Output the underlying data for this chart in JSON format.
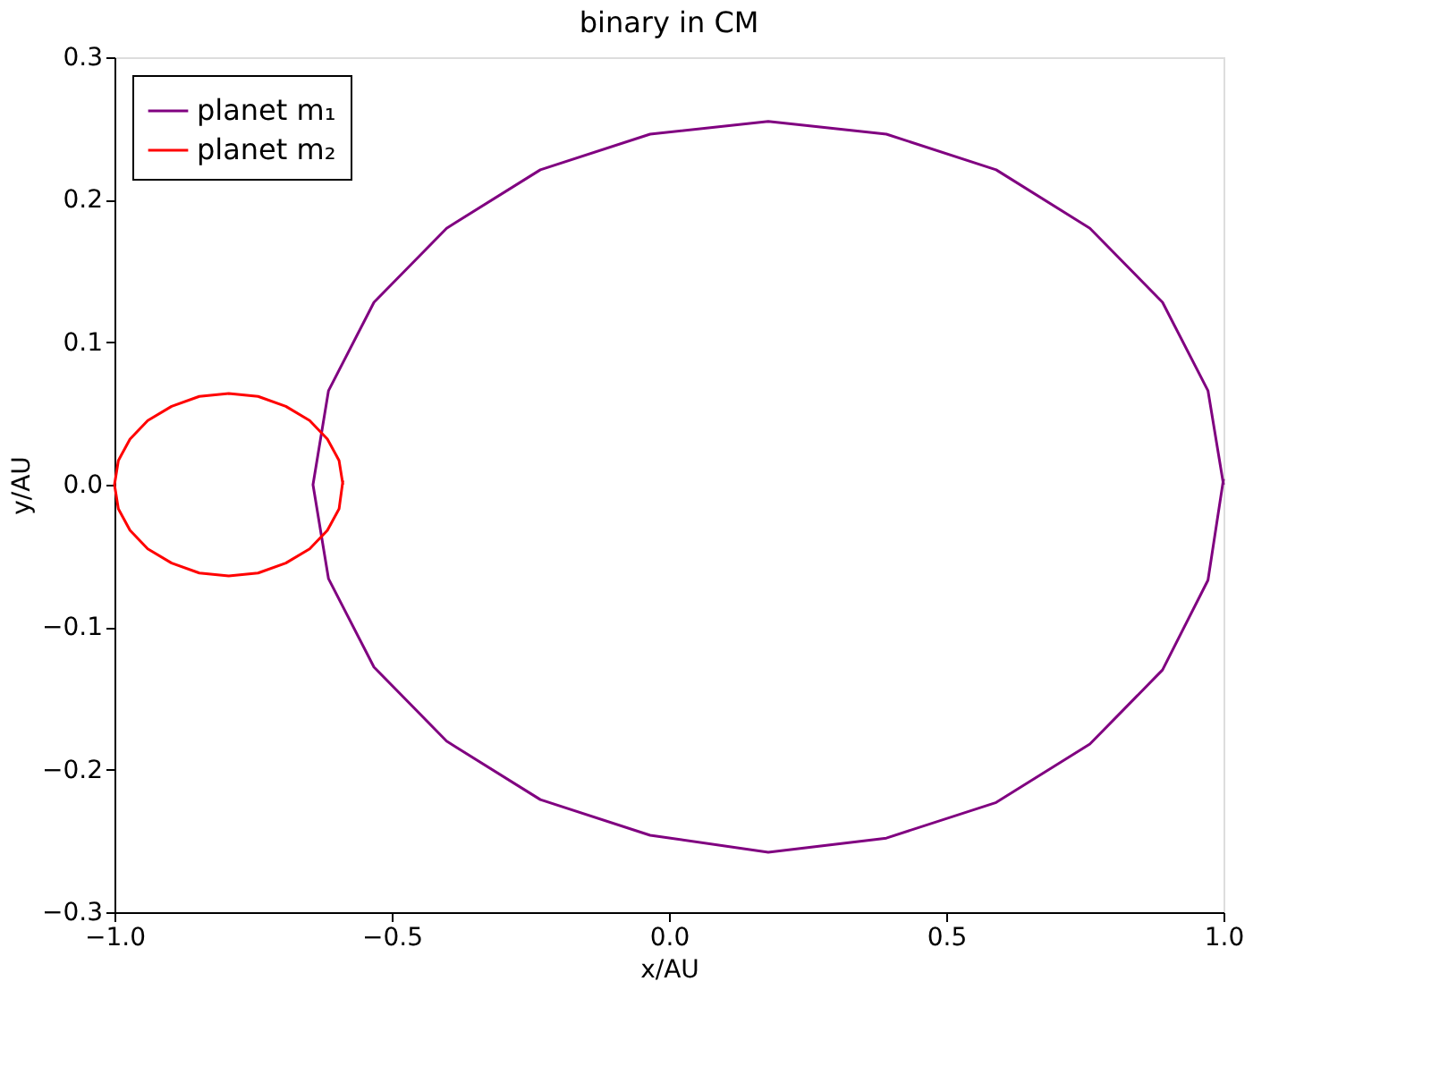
{
  "chart_data": {
    "type": "line",
    "title": "binary in CM",
    "xlabel": "x/AU",
    "ylabel": "y/AU",
    "xlim": [
      -1,
      1
    ],
    "ylim": [
      -0.3,
      0.3
    ],
    "xticks": [
      {
        "value": -1,
        "label": "−1.0"
      },
      {
        "value": -0.5,
        "label": "−0.5"
      },
      {
        "value": 0,
        "label": "0.0"
      },
      {
        "value": 0.5,
        "label": "0.5"
      },
      {
        "value": 1,
        "label": "1.0"
      }
    ],
    "yticks": [
      {
        "value": -0.3,
        "label": "−0.3"
      },
      {
        "value": -0.2,
        "label": "−0.2"
      },
      {
        "value": -0.1,
        "label": "−0.1"
      },
      {
        "value": 0,
        "label": "0.0"
      },
      {
        "value": 0.1,
        "label": "0.1"
      },
      {
        "value": 0.2,
        "label": "0.2"
      },
      {
        "value": 0.3,
        "label": "0.3"
      }
    ],
    "grid": false,
    "legend": "top left",
    "marker": "none",
    "line_style": "solid",
    "series": [
      {
        "name": "planet m₁",
        "color": "#800080",
        "x": [
          1.0,
          0.972,
          0.89,
          0.759,
          0.59,
          0.392,
          0.179,
          -0.034,
          -0.232,
          -0.401,
          -0.532,
          -0.614,
          -0.642,
          -0.614,
          -0.532,
          -0.401,
          -0.232,
          -0.034,
          0.179,
          0.392,
          0.59,
          0.759,
          0.89,
          0.972,
          1.0
        ],
        "values": [
          0,
          0.066,
          0.128,
          0.18,
          0.221,
          0.246,
          0.255,
          0.246,
          0.221,
          0.18,
          0.128,
          0.066,
          0,
          -0.066,
          -0.128,
          -0.18,
          -0.221,
          -0.246,
          -0.258,
          -0.248,
          -0.223,
          -0.182,
          -0.13,
          -0.067,
          0.004
        ]
      },
      {
        "name": "planet m₂",
        "color": "#ff0000",
        "x": [
          -0.588,
          -0.595,
          -0.616,
          -0.648,
          -0.691,
          -0.741,
          -0.794,
          -0.847,
          -0.897,
          -0.94,
          -0.972,
          -0.993,
          -1.0,
          -0.993,
          -0.972,
          -0.94,
          -0.897,
          -0.847,
          -0.794,
          -0.741,
          -0.691,
          -0.648,
          -0.616,
          -0.595,
          -0.588
        ],
        "values": [
          0,
          0.017,
          0.032,
          0.045,
          0.055,
          0.062,
          0.064,
          0.062,
          0.055,
          0.045,
          0.032,
          0.017,
          0,
          -0.017,
          -0.032,
          -0.045,
          -0.055,
          -0.062,
          -0.064,
          -0.062,
          -0.055,
          -0.045,
          -0.032,
          -0.017,
          0.003
        ]
      }
    ]
  }
}
